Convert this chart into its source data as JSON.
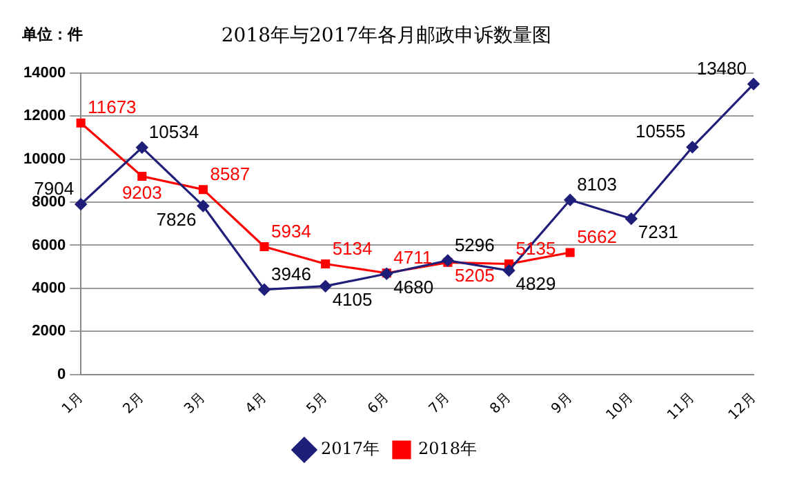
{
  "chart_data": {
    "type": "line",
    "title": "2018年与2017年各月邮政申诉数量图",
    "ylabel": "单位：件",
    "categories": [
      "1月",
      "2月",
      "3月",
      "4月",
      "5月",
      "6月",
      "7月",
      "8月",
      "9月",
      "10月",
      "11月",
      "12月"
    ],
    "series": [
      {
        "name": "2017年",
        "color": "#1f1f7a",
        "marker": "diamond",
        "values": [
          7904,
          10534,
          7826,
          3946,
          4105,
          4680,
          5296,
          4829,
          8103,
          7231,
          10555,
          13480
        ]
      },
      {
        "name": "2018年",
        "color": "#ff0000",
        "marker": "square",
        "values": [
          11673,
          9203,
          8587,
          5934,
          5134,
          4711,
          5205,
          5135,
          5662,
          null,
          null,
          null
        ]
      }
    ],
    "ylim": [
      0,
      14000
    ],
    "yticks": [
      0,
      2000,
      4000,
      6000,
      8000,
      10000,
      12000,
      14000
    ],
    "grid": "y",
    "legend": "bottom",
    "data_labels": true,
    "line_style": "solid"
  }
}
